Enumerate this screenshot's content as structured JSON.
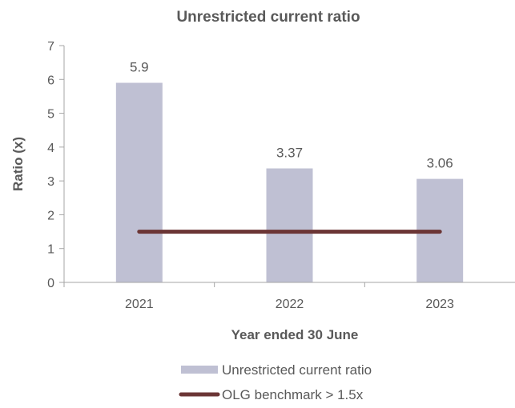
{
  "chart_data": {
    "type": "bar",
    "title": "Unrestricted current ratio",
    "xlabel": "Year ended 30 June",
    "ylabel": "Ratio (x)",
    "categories": [
      "2021",
      "2022",
      "2023"
    ],
    "ylim": [
      0,
      7
    ],
    "yticks": [
      0,
      1,
      2,
      3,
      4,
      5,
      6,
      7
    ],
    "grid": false,
    "legend_position": "bottom",
    "series": [
      {
        "name": "Unrestricted current ratio",
        "type": "bar",
        "values": [
          5.9,
          3.37,
          3.06
        ],
        "data_labels": [
          "5.9",
          "3.37",
          "3.06"
        ],
        "color": "#bfc0d3"
      },
      {
        "name": "OLG benchmark > 1.5x",
        "type": "line",
        "values": [
          1.5,
          1.5,
          1.5
        ],
        "color": "#6b3535"
      }
    ]
  }
}
